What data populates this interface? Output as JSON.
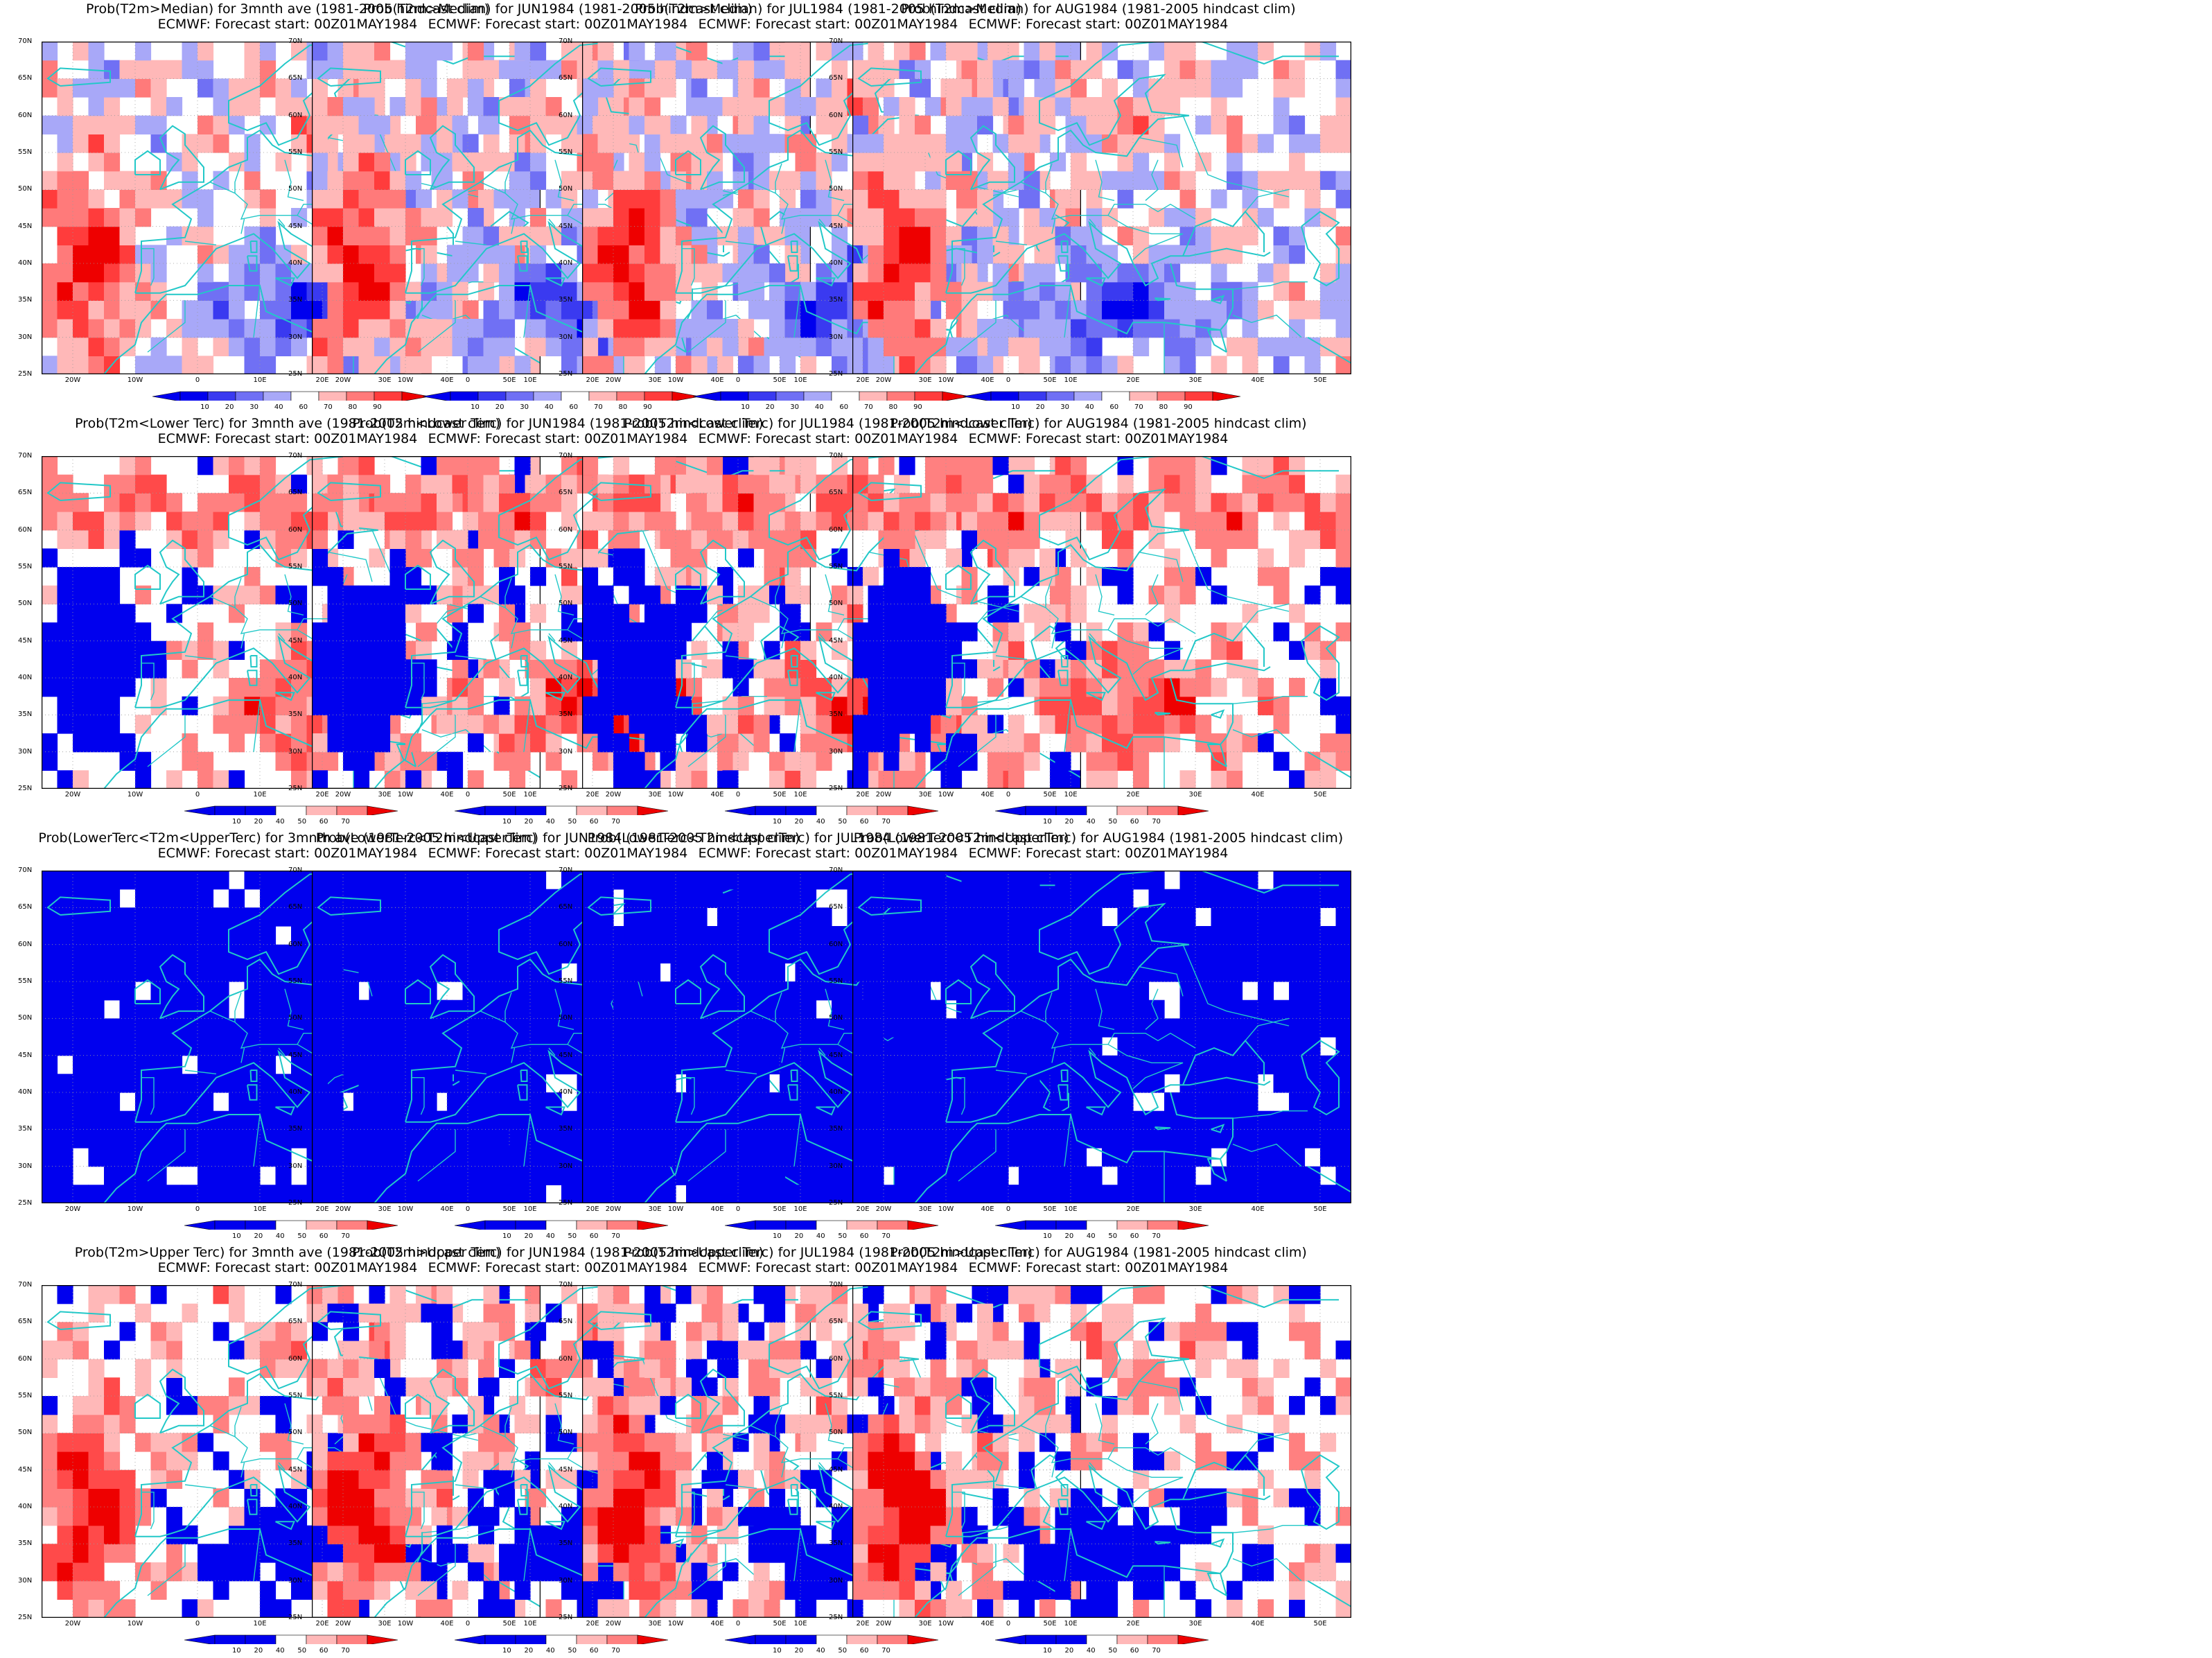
{
  "rows": [
    {
      "row_name": "prob-above-median",
      "palette": "median",
      "titles": [
        "Prob(T2m>Median) for 3mnth ave (1981-2005 hindcast clim)",
        "Prob(T2m>Median) for JUN1984 (1981-2005 hindcast clim)",
        "Prob(T2m>Median) for JUL1984 (1981-2005 hindcast clim)",
        "Prob(T2m>Median) for AUG1984 (1981-2005 hindcast clim)"
      ],
      "field_type": [
        "warm-west",
        "warm-west",
        "warm-west",
        "warm-west"
      ],
      "colorbar_labels": [
        "10",
        "20",
        "30",
        "40",
        "60",
        "70",
        "80",
        "90"
      ]
    },
    {
      "row_name": "prob-below-lower-tercile",
      "palette": "tercile",
      "titles": [
        "Prob(T2m<Lower Terc) for 3mnth ave (1981-2005 hindcast clim)",
        "Prob(T2m<Lower Terc) for JUN1984 (1981-2005 hindcast clim)",
        "Prob(T2m<Lower Terc) for JUL1984 (1981-2005 hindcast clim)",
        "Prob(T2m<Lower Terc) for AUG1984 (1981-2005 hindcast clim)"
      ],
      "field_type": [
        "cold-west",
        "cold-west",
        "cold-west",
        "cold-west"
      ],
      "colorbar_labels": [
        "10",
        "20",
        "40",
        "50",
        "60",
        "70"
      ]
    },
    {
      "row_name": "prob-middle-tercile",
      "palette": "tercile",
      "titles": [
        "Prob(LowerTerc<T2m<UpperTerc) for 3mnth ave (1981-2005 hindcast clim)",
        "Prob(LowerTerc<T2m<UpperTerc) for JUN1984 (1981-2005 hindcast clim)",
        "Prob(LowerTerc<T2m<UpperTerc) for JUL1984 (1981-2005 hindcast clim)",
        "Prob(LowerTerc<T2m<UpperTerc) for AUG1984 (1981-2005 hindcast clim)"
      ],
      "field_type": [
        "mostly-blue",
        "mostly-blue",
        "mostly-blue",
        "mostly-blue"
      ],
      "colorbar_labels": [
        "10",
        "20",
        "40",
        "50",
        "60",
        "70"
      ]
    },
    {
      "row_name": "prob-above-upper-tercile",
      "palette": "tercile",
      "titles": [
        "Prob(T2m>Upper Terc) for 3mnth ave (1981-2005 hindcast clim)",
        "Prob(T2m>Upper Terc) for JUN1984 (1981-2005 hindcast clim)",
        "Prob(T2m>Upper Terc) for JUL1984 (1981-2005 hindcast clim)",
        "Prob(T2m>Upper Terc) for AUG1984 (1981-2005 hindcast clim)"
      ],
      "field_type": [
        "warm-west",
        "warm-west",
        "warm-west",
        "warm-west"
      ],
      "colorbar_labels": [
        "10",
        "20",
        "40",
        "50",
        "60",
        "70"
      ]
    }
  ],
  "subtitle": "ECMWF: Forecast start: 00Z01MAY1984",
  "lat_labels": [
    "70N",
    "65N",
    "60N",
    "55N",
    "50N",
    "45N",
    "40N",
    "35N",
    "30N",
    "25N"
  ],
  "lon_labels": [
    "20W",
    "10W",
    "0",
    "10E",
    "20E",
    "30E",
    "40E",
    "50E"
  ],
  "map_extent": {
    "lon_min": -25,
    "lon_max": 55,
    "lat_min": 25,
    "lat_max": 70
  },
  "colors": {
    "coast": "#22c8c8",
    "median_scale": [
      "#0000ee",
      "#3a3af0",
      "#7070f4",
      "#a8a8f8",
      "#ffffff",
      "#ffb8b8",
      "#ff7a7a",
      "#ff3c3c",
      "#ee0000"
    ],
    "tercile_scale": [
      "#0000ee",
      "#ffffff",
      "#ffb8b8",
      "#ff8080",
      "#ff4a4a",
      "#ee0000"
    ]
  }
}
